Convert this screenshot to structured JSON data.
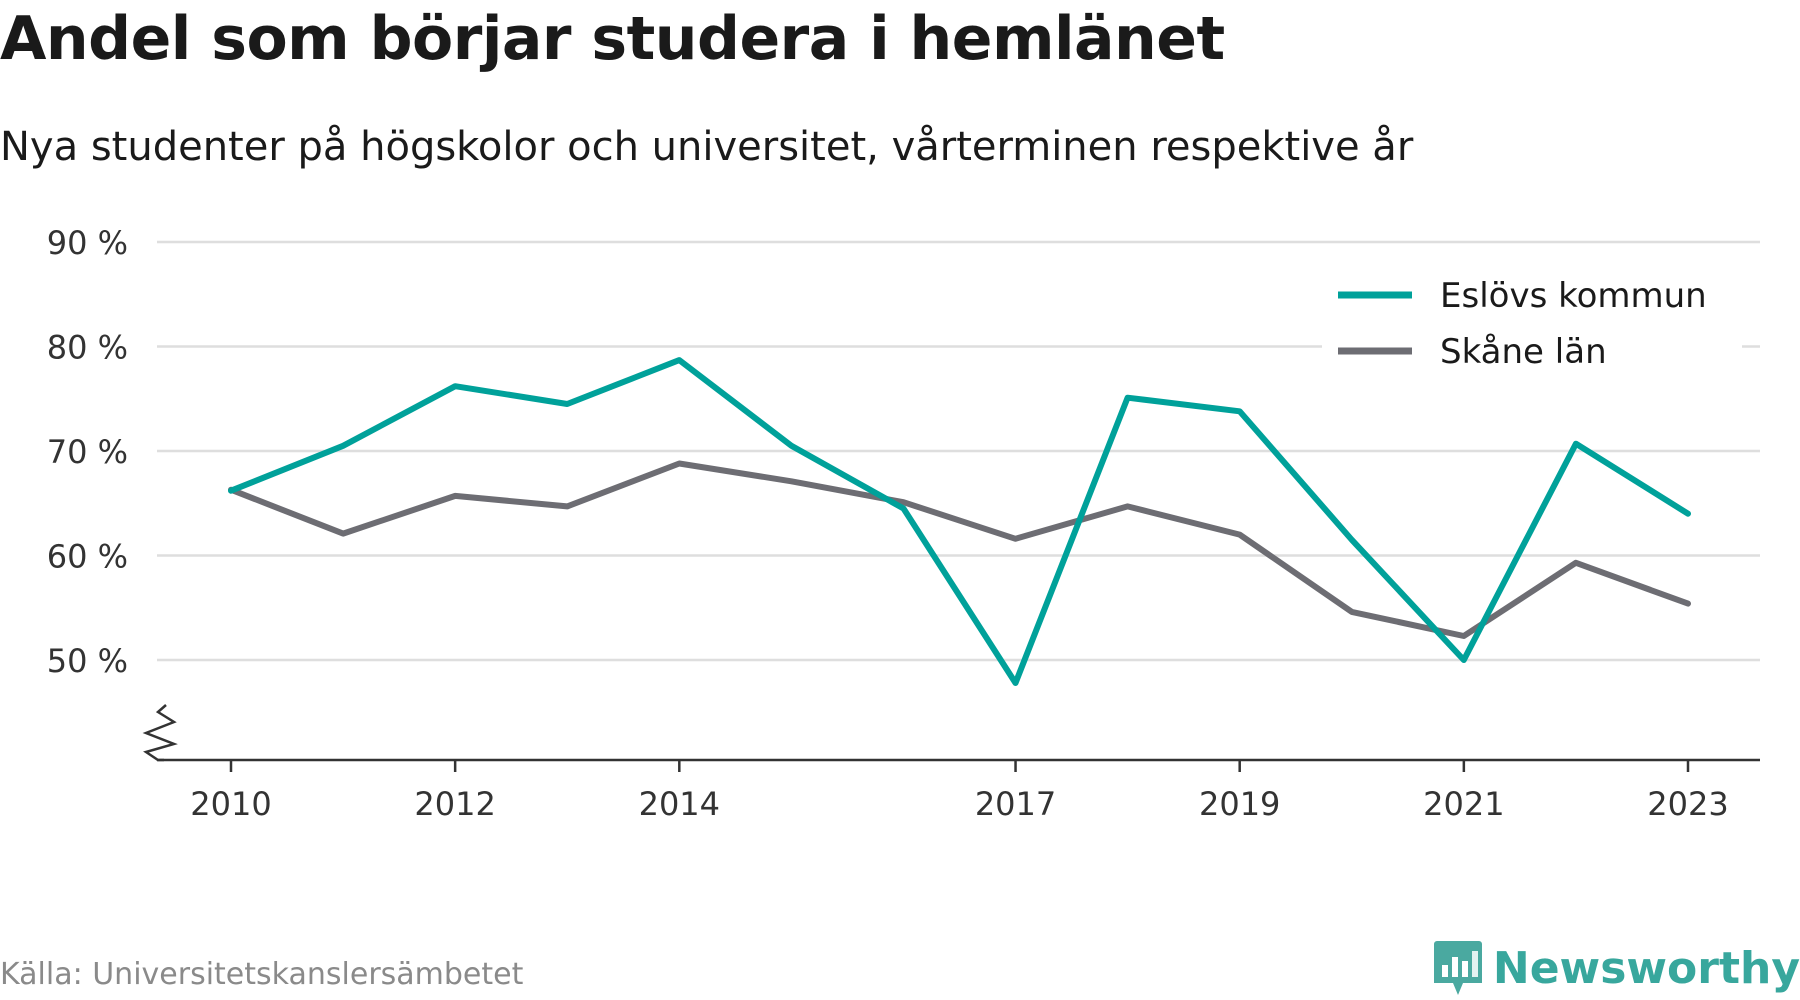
{
  "title": "Andel som börjar studera i hemlänet",
  "subtitle": "Nya studenter på högskolor och universitet, vårterminen respektive år",
  "source": "Källa: Universitetskanslersämbetet",
  "brand": {
    "name": "Newsworthy",
    "icon": "newsworthy-logo-icon",
    "color": "#38a79d"
  },
  "chart_data": {
    "type": "line",
    "x": [
      2010,
      2011,
      2012,
      2013,
      2014,
      2015,
      2016,
      2017,
      2018,
      2019,
      2020,
      2021,
      2022,
      2023
    ],
    "x_tick_labels": [
      "2010",
      "2012",
      "2014",
      "2017",
      "2019",
      "2021",
      "2023"
    ],
    "y_tick_labels": [
      "50 %",
      "60 %",
      "70 %",
      "80 %",
      "90 %"
    ],
    "y_ticks": [
      50,
      60,
      70,
      80,
      90
    ],
    "ylim": [
      41,
      90
    ],
    "y_axis_break": true,
    "grid": true,
    "legend_position": "top-right",
    "series": [
      {
        "name": "Eslövs kommun",
        "color": "#00a19a",
        "values": [
          66.2,
          70.5,
          76.2,
          74.5,
          78.7,
          70.5,
          64.5,
          47.8,
          75.1,
          73.8,
          61.5,
          50.0,
          70.7,
          64.0
        ]
      },
      {
        "name": "Skåne län",
        "color": "#6d6d73",
        "values": [
          66.3,
          62.1,
          65.7,
          64.7,
          68.8,
          67.1,
          65.1,
          61.6,
          64.7,
          62.0,
          54.6,
          52.3,
          59.3,
          55.4
        ]
      }
    ]
  }
}
